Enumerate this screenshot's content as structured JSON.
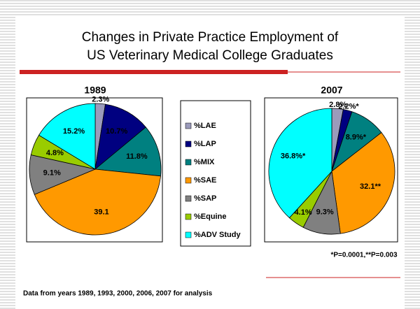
{
  "title": [
    "Changes in Private Practice Employment of",
    "US Veterinary Medical College Graduates"
  ],
  "note": "*P=0.0001,**P=0.003",
  "footnote": "Data from years 1989, 1993, 2000, 2006, 2007 for analysis",
  "chart_data": [
    {
      "type": "pie",
      "title": "1989",
      "categories": [
        "%LAE",
        "%LAP",
        "%MIX",
        "%SAE",
        "%SAP",
        "%Equine",
        "%ADV Study"
      ],
      "colors": [
        "#9b9bbb",
        "#000080",
        "#008080",
        "#ff9900",
        "#808080",
        "#99cc00",
        "#00ffff"
      ],
      "values": [
        2.3,
        10.7,
        11.8,
        39.1,
        9.1,
        4.8,
        15.2
      ],
      "value_labels": [
        "2.3%",
        "10.7%",
        "11.8%",
        "39.1",
        "9.1%",
        "4.8%",
        "15.2%"
      ]
    },
    {
      "type": "pie",
      "title": "2007",
      "values": [
        2.8,
        2.2,
        8.9,
        32.1,
        9.3,
        4.1,
        36.8
      ],
      "value_labels": [
        "2.8%",
        "2.2%*",
        "8.9%*",
        "32.1**",
        "9.3%",
        "4.1%",
        "36.8%*"
      ]
    }
  ]
}
